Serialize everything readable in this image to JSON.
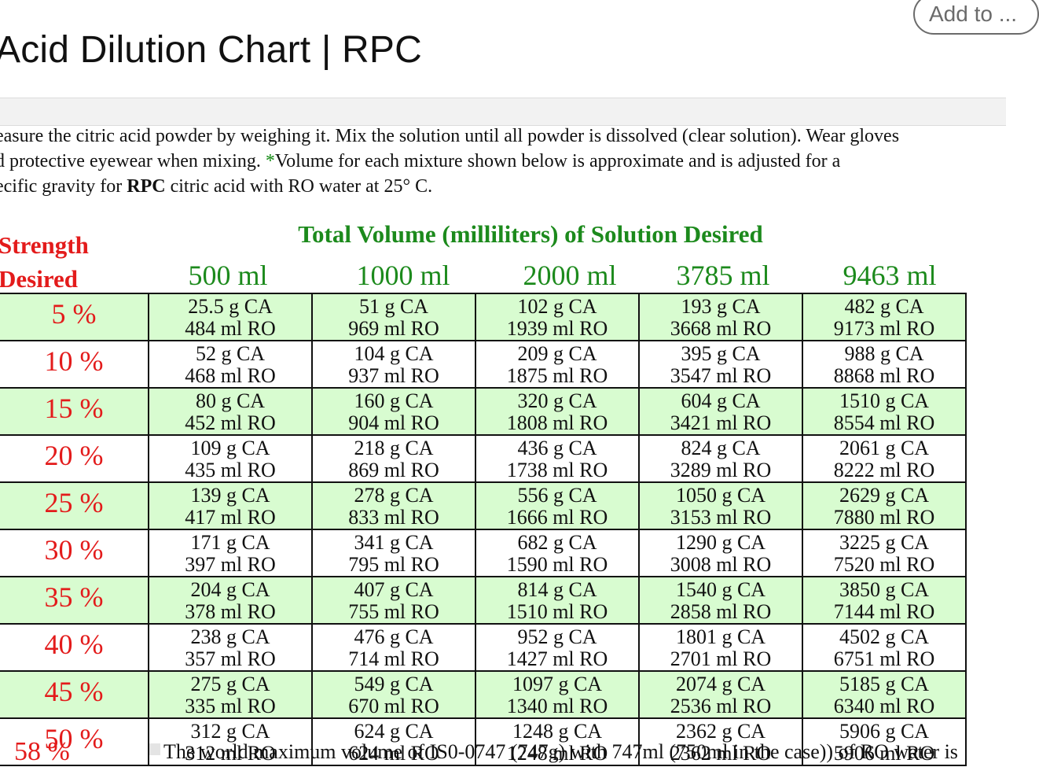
{
  "header": {
    "add_button": "Add to ...",
    "title": "Acid Dilution Chart | RPC"
  },
  "intro": {
    "line1": "easure the citric acid powder by weighing it. Mix the solution until all powder is dissolved (clear solution). Wear gloves",
    "line2_a": "d protective eyewear when mixing. ",
    "line2_star": "*",
    "line2_b": "Volume for each mixture shown below is approximate and is adjusted for a",
    "line3_a": "ecific gravity for ",
    "line3_bold": "RPC",
    "line3_b": " citric acid with RO water at 25° C."
  },
  "table": {
    "strength_label_1": "Strength",
    "strength_label_2": "Desired",
    "total_label": "Total Volume (milliliters) of Solution Desired",
    "volumes": [
      "500 ml",
      "1000 ml",
      "2000 ml",
      "3785 ml",
      "9463 ml"
    ],
    "rows": [
      {
        "strength": "5 %",
        "cells": [
          [
            "25.5 g CA",
            "484 ml RO"
          ],
          [
            "51 g CA",
            "969 ml RO"
          ],
          [
            "102 g CA",
            "1939 ml RO"
          ],
          [
            "193 g CA",
            "3668 ml RO"
          ],
          [
            "482 g CA",
            "9173 ml RO"
          ]
        ]
      },
      {
        "strength": "10 %",
        "cells": [
          [
            "52 g   CA",
            "468 ml RO"
          ],
          [
            "104 g CA",
            "937 ml RO"
          ],
          [
            "209 g CA",
            "1875 ml RO"
          ],
          [
            "395 g CA",
            "3547 ml RO"
          ],
          [
            "988 g CA",
            "8868 ml RO"
          ]
        ]
      },
      {
        "strength": "15 %",
        "cells": [
          [
            "80 g CA",
            "452 ml RO"
          ],
          [
            "160 g CA",
            "904 ml RO"
          ],
          [
            "320 g CA",
            "1808 ml RO"
          ],
          [
            "604 g CA",
            "3421 ml RO"
          ],
          [
            "1510 g CA",
            "8554 ml RO"
          ]
        ]
      },
      {
        "strength": "20 %",
        "cells": [
          [
            "109 g CA",
            "435 ml RO"
          ],
          [
            "218 g CA",
            "869 ml RO"
          ],
          [
            "436 g CA",
            "1738 ml RO"
          ],
          [
            "824 g CA",
            "3289 ml RO"
          ],
          [
            "2061 g CA",
            "8222 ml RO"
          ]
        ]
      },
      {
        "strength": "25 %",
        "cells": [
          [
            "139 g CA",
            "417 ml RO"
          ],
          [
            "278 g CA",
            "833 ml RO"
          ],
          [
            "556 g CA",
            "1666 ml RO"
          ],
          [
            "1050 g CA",
            "3153 ml RO"
          ],
          [
            "2629 g CA",
            "7880 ml RO"
          ]
        ]
      },
      {
        "strength": "30 %",
        "cells": [
          [
            "171 g CA",
            "397 ml RO"
          ],
          [
            "341 g CA",
            "795 ml RO"
          ],
          [
            "682 g CA",
            "1590 ml RO"
          ],
          [
            "1290 g CA",
            "3008 ml RO"
          ],
          [
            "3225 g CA",
            "7520 ml RO"
          ]
        ]
      },
      {
        "strength": "35 %",
        "cells": [
          [
            "204 g CA",
            "378 ml RO"
          ],
          [
            "407 g CA",
            "755 ml RO"
          ],
          [
            "814 g CA",
            "1510 ml RO"
          ],
          [
            "1540 g CA",
            "2858 ml RO"
          ],
          [
            "3850 g CA",
            "7144 ml RO"
          ]
        ]
      },
      {
        "strength": "40 %",
        "cells": [
          [
            "238 g CA",
            "357 ml RO"
          ],
          [
            "476 g CA",
            "714 ml RO"
          ],
          [
            "952 g CA",
            "1427 ml RO"
          ],
          [
            "1801 g CA",
            "2701 ml RO"
          ],
          [
            "4502 g CA",
            "6751 ml RO"
          ]
        ]
      },
      {
        "strength": "45 %",
        "cells": [
          [
            "275 g CA",
            "335 ml RO"
          ],
          [
            "549 g CA",
            "670 ml RO"
          ],
          [
            "1097 g CA",
            "1340 ml RO"
          ],
          [
            "2074 g CA",
            "2536 ml RO"
          ],
          [
            "5185 g CA",
            "6340 ml RO"
          ]
        ]
      },
      {
        "strength": "50 %",
        "cells": [
          [
            "312 g CA",
            "312 ml RO"
          ],
          [
            "624 g CA",
            "624 ml RO"
          ],
          [
            "1248 g CA",
            "1248 ml RO"
          ],
          [
            "2362 g CA",
            "2362 ml RO"
          ],
          [
            "5906 g CA",
            "5906 ml RO"
          ]
        ]
      }
    ]
  },
  "footer_partial": {
    "strength": "58 %",
    "text": "The world maximum volume of IS0-0747 (747g) with 747ml (750ml in the case)) of RO water is"
  }
}
